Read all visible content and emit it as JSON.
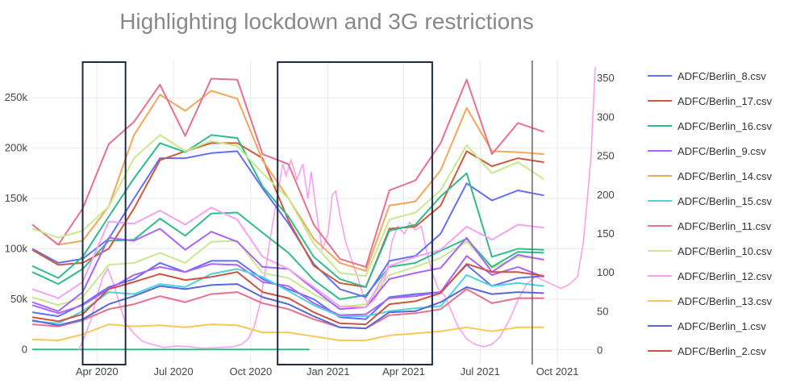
{
  "chart_data": {
    "type": "line",
    "title": "Highlighting lockdown and 3G restrictions",
    "x_ticks": [
      "Apr 2020",
      "Jul 2020",
      "Oct 2020",
      "Jan 2021",
      "Apr 2021",
      "Jul 2021",
      "Oct 2021"
    ],
    "x_range": [
      "2020-01-15",
      "2021-11-15"
    ],
    "y_left": {
      "ticks": [
        "0",
        "50k",
        "100k",
        "150k",
        "200k",
        "250k"
      ],
      "tick_values": [
        0,
        50000,
        100000,
        150000,
        200000,
        250000
      ],
      "range": [
        -15000,
        287000
      ]
    },
    "y_right": {
      "ticks": [
        "0",
        "50",
        "100",
        "150",
        "200",
        "250",
        "300",
        "350"
      ],
      "tick_values": [
        0,
        50,
        100,
        150,
        200,
        250,
        300,
        350
      ],
      "range": [
        -18,
        373
      ]
    },
    "grid": true,
    "legend_position": "right",
    "x": [
      "2020-01-15",
      "2020-02-15",
      "2020-03-15",
      "2020-04-15",
      "2020-05-15",
      "2020-06-15",
      "2020-07-15",
      "2020-08-15",
      "2020-09-15",
      "2020-10-15",
      "2020-11-15",
      "2020-12-15",
      "2021-01-15",
      "2021-02-15",
      "2021-03-15",
      "2021-04-15",
      "2021-05-15",
      "2021-06-15",
      "2021-07-15",
      "2021-08-15",
      "2021-09-15",
      "2021-10-15"
    ],
    "series": [
      {
        "name": "ADFC/Berlin_8.csv",
        "color": "#636efa",
        "values": [
          100000,
          86000,
          90000,
          110000,
          150000,
          190000,
          190000,
          195000,
          197000,
          160000,
          125000,
          85000,
          60000,
          52000,
          88000,
          93000,
          115000,
          165000,
          148000,
          158000,
          153000,
          null
        ]
      },
      {
        "name": "ADFC/Berlin_17.csv",
        "color": "#ce5a3a",
        "values": [
          99000,
          84000,
          86000,
          100000,
          140000,
          188000,
          197000,
          205000,
          205000,
          190000,
          128000,
          83000,
          66000,
          62000,
          120000,
          122000,
          143000,
          197000,
          182000,
          190000,
          186000,
          null
        ]
      },
      {
        "name": "ADFC/Berlin_16.csv",
        "color": "#2fbb8a",
        "values": [
          83000,
          71000,
          92000,
          132000,
          170000,
          205000,
          196000,
          213000,
          210000,
          162000,
          132000,
          92000,
          70000,
          62000,
          118000,
          124000,
          152000,
          175000,
          92000,
          100000,
          99000,
          null
        ]
      },
      {
        "name": "ADFC/Berlin_9.csv",
        "color": "#ab63fa",
        "values": [
          47000,
          38000,
          57000,
          111000,
          108000,
          120000,
          99000,
          117000,
          107000,
          82000,
          80000,
          60000,
          40000,
          42000,
          70000,
          76000,
          81000,
          111000,
          77000,
          94000,
          89000,
          null
        ]
      },
      {
        "name": "ADFC/Berlin_14.csv",
        "color": "#f5a55a",
        "values": [
          124000,
          104000,
          108000,
          142000,
          213000,
          253000,
          237000,
          257000,
          249000,
          188000,
          150000,
          110000,
          86000,
          78000,
          143000,
          147000,
          178000,
          240000,
          197000,
          196000,
          194000,
          null
        ]
      },
      {
        "name": "ADFC/Berlin_15.csv",
        "color": "#4ed2de",
        "values": [
          28000,
          26000,
          38000,
          57000,
          55000,
          65000,
          62000,
          75000,
          80000,
          72000,
          58000,
          44000,
          33000,
          33000,
          38000,
          41000,
          43000,
          74000,
          63000,
          66000,
          63000,
          null
        ]
      },
      {
        "name": "ADFC/Berlin_11.csv",
        "color": "#e8708d",
        "values": [
          124000,
          104000,
          140000,
          204000,
          226000,
          263000,
          212000,
          269000,
          268000,
          194000,
          184000,
          124000,
          90000,
          82000,
          158000,
          168000,
          205000,
          268000,
          194000,
          225000,
          216000,
          null
        ]
      },
      {
        "name": "ADFC/Berlin_10.csv",
        "color": "#c6e98e",
        "values": [
          120000,
          111000,
          118000,
          142000,
          190000,
          213000,
          197000,
          207000,
          202000,
          175000,
          150000,
          105000,
          76000,
          73000,
          129000,
          136000,
          158000,
          203000,
          175000,
          186000,
          169000,
          null
        ]
      },
      {
        "name": "ADFC/Berlin_12.csv",
        "color": "#f6a1f0",
        "values": [
          60000,
          51000,
          67000,
          127000,
          125000,
          138000,
          124000,
          141000,
          129000,
          92000,
          80000,
          62000,
          43000,
          42000,
          83000,
          92000,
          99000,
          122000,
          109000,
          124000,
          121000,
          null
        ]
      },
      {
        "name": "ADFC/Berlin_13.csv",
        "color": "#f8c855",
        "values": [
          10000,
          9000,
          15000,
          25000,
          23000,
          24000,
          22000,
          25000,
          24000,
          17000,
          17000,
          13000,
          9000,
          9000,
          14000,
          16000,
          18000,
          22000,
          18000,
          22000,
          22000,
          null
        ]
      },
      {
        "name": "ADFC/Berlin_1.csv",
        "color": "#5a67d8",
        "values": [
          29000,
          24000,
          30000,
          45000,
          53000,
          63000,
          60000,
          64000,
          65000,
          52000,
          45000,
          33000,
          22000,
          21000,
          37000,
          38000,
          47000,
          62000,
          55000,
          57000,
          56000,
          null
        ]
      },
      {
        "name": "ADFC/Berlin_2.csv",
        "color": "#cf5340",
        "values": [
          32000,
          28000,
          35000,
          60000,
          67000,
          75000,
          69000,
          72000,
          77000,
          57000,
          51000,
          37000,
          26000,
          25000,
          45000,
          48000,
          56000,
          85000,
          77000,
          77000,
          73000,
          null
        ]
      }
    ],
    "extra_lines": [
      {
        "color": "#636efa",
        "values": [
          37000,
          33000,
          45000,
          62000,
          70000,
          86000,
          77000,
          88000,
          88000,
          70000,
          60000,
          50000,
          32000,
          30000,
          52000,
          55000,
          57000,
          84000,
          63000,
          71000,
          73000,
          null
        ]
      },
      {
        "color": "#ab63fa",
        "values": [
          44000,
          36000,
          44000,
          60000,
          74000,
          82000,
          77000,
          85000,
          84000,
          67000,
          63000,
          46000,
          34000,
          35000,
          51000,
          53000,
          57000,
          93000,
          74000,
          82000,
          72000,
          null
        ]
      },
      {
        "color": "#c6e98e",
        "values": [
          52000,
          44000,
          52000,
          84000,
          86000,
          96000,
          86000,
          107000,
          108000,
          76000,
          71000,
          55000,
          42000,
          45000,
          74000,
          82000,
          91000,
          107000,
          81000,
          92000,
          90000,
          null
        ]
      },
      {
        "color": "#2fbb8a",
        "values": [
          77000,
          65000,
          80000,
          108000,
          109000,
          130000,
          113000,
          135000,
          136000,
          116000,
          96000,
          69000,
          50000,
          54000,
          82000,
          86000,
          98000,
          110000,
          82000,
          97000,
          96000,
          null
        ]
      },
      {
        "color": "#e8708d",
        "values": [
          25000,
          23000,
          29000,
          40000,
          45000,
          53000,
          47000,
          55000,
          57000,
          46000,
          40000,
          30000,
          22000,
          21000,
          34000,
          36000,
          40000,
          60000,
          46000,
          51000,
          51000,
          null
        ]
      }
    ],
    "secondary_series": {
      "color": "#f6a1f0",
      "axis": "right",
      "points": [
        [
          "2020-03-10",
          0
        ],
        [
          "2020-03-18",
          20
        ],
        [
          "2020-03-25",
          40
        ],
        [
          "2020-04-01",
          70
        ],
        [
          "2020-04-08",
          95
        ],
        [
          "2020-04-14",
          105
        ],
        [
          "2020-04-20",
          88
        ],
        [
          "2020-04-28",
          60
        ],
        [
          "2020-05-05",
          35
        ],
        [
          "2020-05-15",
          22
        ],
        [
          "2020-05-25",
          12
        ],
        [
          "2020-06-05",
          8
        ],
        [
          "2020-06-20",
          4
        ],
        [
          "2020-07-05",
          6
        ],
        [
          "2020-07-20",
          5
        ],
        [
          "2020-08-05",
          3
        ],
        [
          "2020-08-25",
          4
        ],
        [
          "2020-09-10",
          5
        ],
        [
          "2020-09-20",
          8
        ],
        [
          "2020-09-28",
          15
        ],
        [
          "2020-10-05",
          30
        ],
        [
          "2020-10-12",
          60
        ],
        [
          "2020-10-18",
          100
        ],
        [
          "2020-10-25",
          150
        ],
        [
          "2020-11-02",
          200
        ],
        [
          "2020-11-08",
          240
        ],
        [
          "2020-11-12",
          225
        ],
        [
          "2020-11-18",
          245
        ],
        [
          "2020-11-25",
          220
        ],
        [
          "2020-12-02",
          240
        ],
        [
          "2020-12-08",
          195
        ],
        [
          "2020-12-12",
          230
        ],
        [
          "2020-12-18",
          180
        ],
        [
          "2020-12-25",
          130
        ],
        [
          "2021-01-01",
          150
        ],
        [
          "2021-01-06",
          200
        ],
        [
          "2021-01-10",
          205
        ],
        [
          "2021-01-16",
          170
        ],
        [
          "2021-01-22",
          140
        ],
        [
          "2021-01-28",
          120
        ],
        [
          "2021-02-05",
          95
        ],
        [
          "2021-02-12",
          70
        ],
        [
          "2021-02-18",
          60
        ],
        [
          "2021-02-25",
          65
        ],
        [
          "2021-03-05",
          80
        ],
        [
          "2021-03-12",
          100
        ],
        [
          "2021-03-18",
          140
        ],
        [
          "2021-03-25",
          160
        ],
        [
          "2021-04-02",
          150
        ],
        [
          "2021-04-08",
          165
        ],
        [
          "2021-04-15",
          155
        ],
        [
          "2021-04-22",
          160
        ],
        [
          "2021-04-28",
          130
        ],
        [
          "2021-05-05",
          100
        ],
        [
          "2021-05-12",
          80
        ],
        [
          "2021-05-20",
          70
        ],
        [
          "2021-05-28",
          50
        ],
        [
          "2021-06-05",
          30
        ],
        [
          "2021-06-15",
          15
        ],
        [
          "2021-06-25",
          8
        ],
        [
          "2021-07-05",
          5
        ],
        [
          "2021-07-15",
          8
        ],
        [
          "2021-07-25",
          18
        ],
        [
          "2021-08-05",
          40
        ],
        [
          "2021-08-15",
          65
        ],
        [
          "2021-08-25",
          85
        ],
        [
          "2021-09-05",
          95
        ],
        [
          "2021-09-15",
          90
        ],
        [
          "2021-09-25",
          85
        ],
        [
          "2021-10-05",
          80
        ],
        [
          "2021-10-15",
          85
        ],
        [
          "2021-10-25",
          95
        ],
        [
          "2021-11-01",
          140
        ],
        [
          "2021-11-06",
          200
        ],
        [
          "2021-11-10",
          250
        ],
        [
          "2021-11-13",
          320
        ],
        [
          "2021-11-15",
          365
        ]
      ]
    },
    "green_line": {
      "color": "#2fbb8a",
      "x": [
        "2020-01-15",
        "2020-12-10"
      ],
      "y": 0
    },
    "highlight_boxes": [
      {
        "x": [
          "2020-03-15",
          "2020-05-05"
        ],
        "color": "#1c2a44"
      },
      {
        "x": [
          "2020-11-02",
          "2021-05-05"
        ],
        "color": "#1c2a44"
      }
    ],
    "vertical_line": {
      "x": "2021-09-01",
      "color": "#666666"
    }
  }
}
